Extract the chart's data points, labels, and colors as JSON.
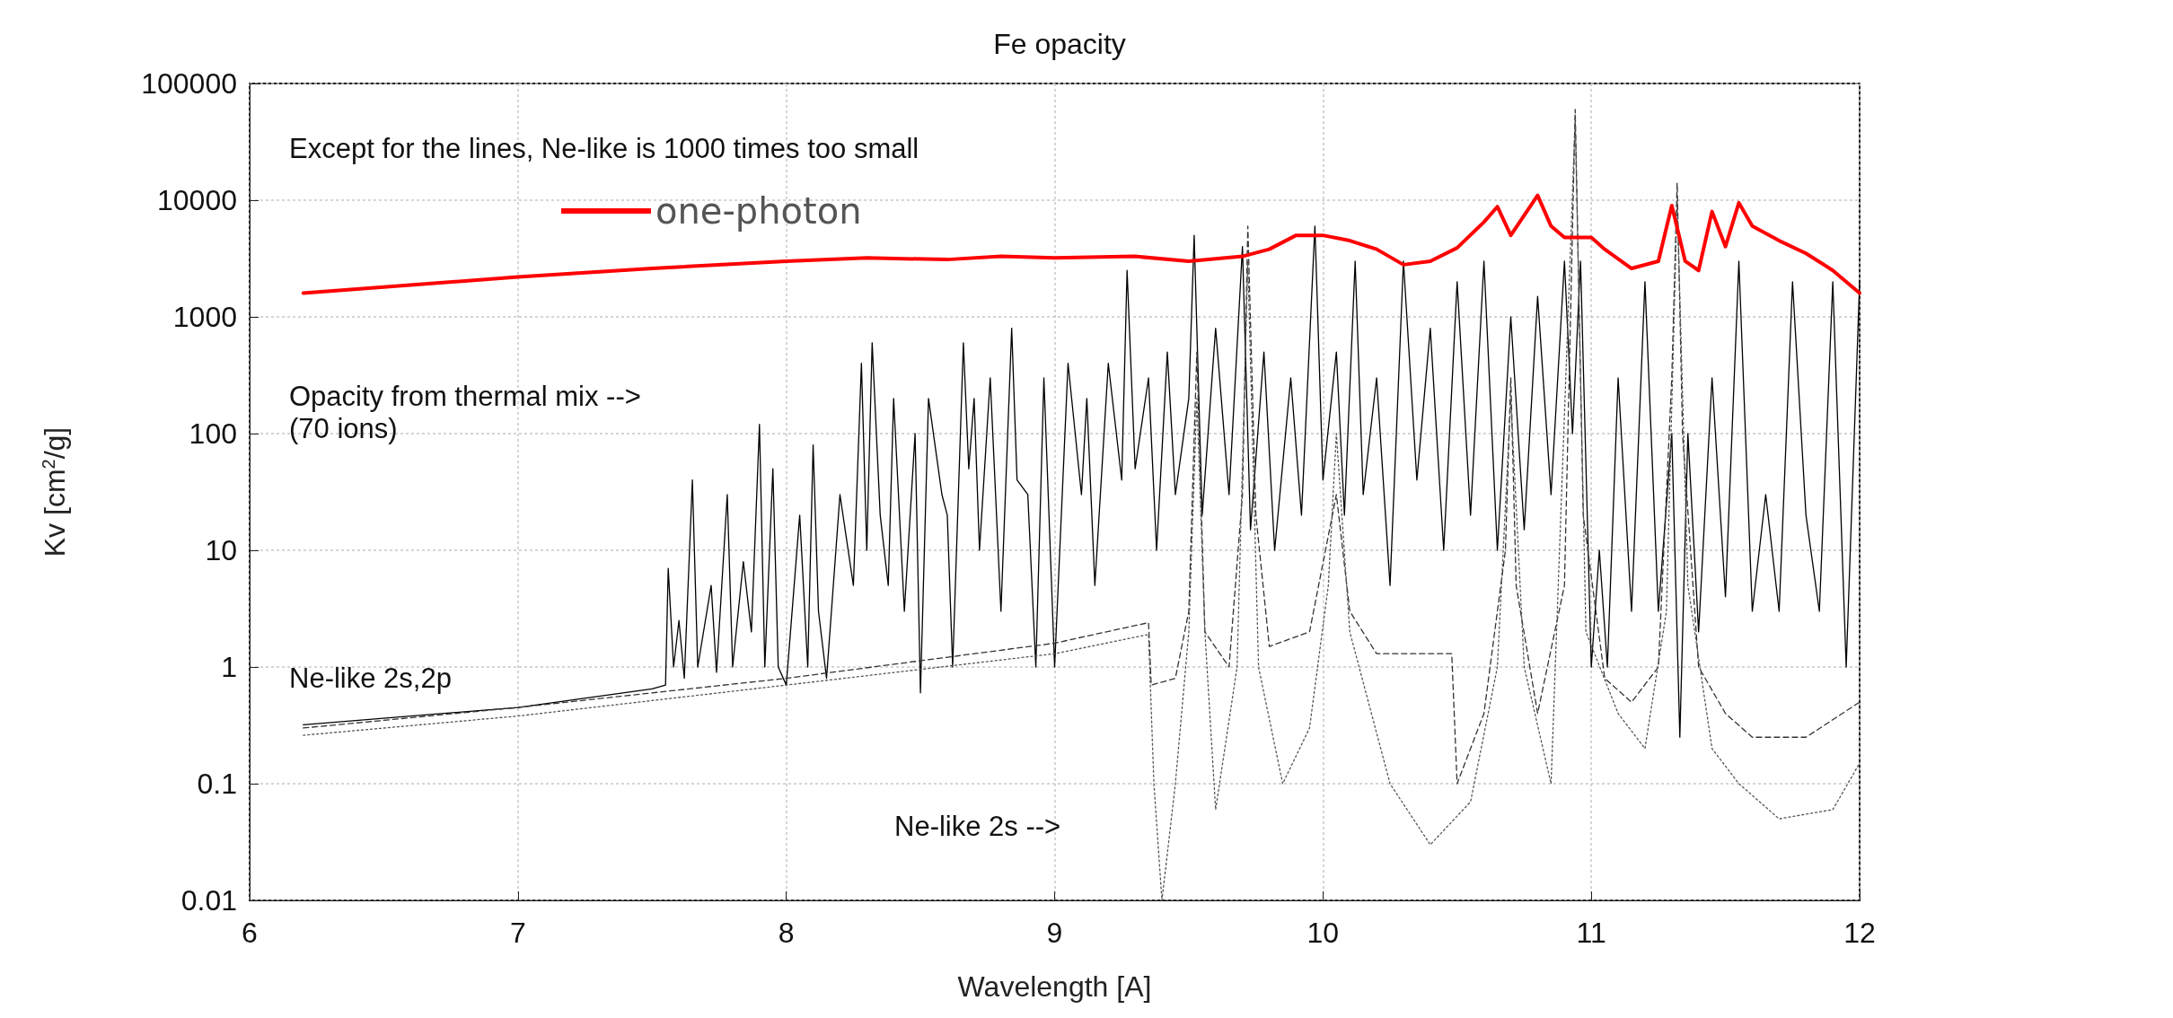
{
  "chart_data": {
    "type": "line",
    "title": "Fe opacity",
    "xlabel": "Wavelength [A]",
    "ylabel": "Kv [cm$^{2}$/g]",
    "xlim": [
      6,
      12
    ],
    "xticks": [
      6,
      7,
      8,
      9,
      10,
      11,
      12
    ],
    "ylim": [
      0.01,
      100000
    ],
    "yticks": [
      0.01,
      0.1,
      1,
      10,
      100,
      1000,
      10000,
      100000
    ],
    "log": "y",
    "grid": true,
    "legend": "top left",
    "marker": "none",
    "annotations": [
      "Except for the lines, Ne-like is 1000 times too small",
      "Opacity from thermal mix -->",
      "(70 ions)",
      "Ne-like 2s,2p",
      "Ne-like 2s -->"
    ],
    "series": [
      {
        "name": "one-photon",
        "color": "#ff0000",
        "line_style": "solid",
        "x": [
          6.2,
          6.5,
          7.0,
          7.5,
          8.0,
          8.3,
          8.6,
          8.8,
          9.0,
          9.3,
          9.5,
          9.7,
          9.8,
          9.9,
          10.0,
          10.1,
          10.2,
          10.3,
          10.4,
          10.5,
          10.6,
          10.65,
          10.7,
          10.8,
          10.85,
          10.9,
          11.0,
          11.05,
          11.15,
          11.25,
          11.3,
          11.35,
          11.4,
          11.45,
          11.5,
          11.55,
          11.6,
          11.7,
          11.8,
          11.9,
          12.0
        ],
        "values": [
          1600,
          1800,
          2200,
          2600,
          3000,
          3200,
          3100,
          3300,
          3200,
          3300,
          3000,
          3300,
          3800,
          5000,
          5000,
          4500,
          3800,
          2800,
          3000,
          3900,
          6500,
          8800,
          5000,
          11000,
          6000,
          4800,
          4800,
          3800,
          2600,
          3000,
          9000,
          3000,
          2500,
          8000,
          4000,
          9500,
          6000,
          4500,
          3500,
          2500,
          1600
        ]
      },
      {
        "color": "#000000",
        "line_style": "solid",
        "x": [
          6.2,
          7,
          7.5,
          7.55,
          7.56,
          7.58,
          7.6,
          7.62,
          7.65,
          7.67,
          7.72,
          7.74,
          7.78,
          7.8,
          7.84,
          7.87,
          7.9,
          7.92,
          7.95,
          7.97,
          8.0,
          8.05,
          8.08,
          8.1,
          8.12,
          8.15,
          8.2,
          8.25,
          8.28,
          8.3,
          8.32,
          8.35,
          8.38,
          8.4,
          8.44,
          8.48,
          8.5,
          8.53,
          8.58,
          8.6,
          8.62,
          8.66,
          8.68,
          8.7,
          8.72,
          8.76,
          8.8,
          8.84,
          8.86,
          8.9,
          8.93,
          8.96,
          9.0,
          9.05,
          9.1,
          9.12,
          9.15,
          9.2,
          9.25,
          9.27,
          9.3,
          9.35,
          9.38,
          9.42,
          9.45,
          9.5,
          9.52,
          9.55,
          9.6,
          9.65,
          9.7,
          9.73,
          9.78,
          9.82,
          9.88,
          9.92,
          9.97,
          10.0,
          10.05,
          10.08,
          10.12,
          10.15,
          10.2,
          10.25,
          10.3,
          10.35,
          10.4,
          10.45,
          10.5,
          10.55,
          10.6,
          10.65,
          10.7,
          10.75,
          10.8,
          10.85,
          10.9,
          10.93,
          10.96,
          11.0,
          11.03,
          11.06,
          11.1,
          11.15,
          11.2,
          11.25,
          11.3,
          11.33,
          11.36,
          11.4,
          11.45,
          11.5,
          11.55,
          11.6,
          11.65,
          11.7,
          11.75,
          11.8,
          11.85,
          11.9,
          11.95,
          12.0
        ],
        "values": [
          0.32,
          0.45,
          0.65,
          0.7,
          7,
          1,
          2.5,
          0.8,
          40,
          1,
          5,
          0.9,
          30,
          1,
          8,
          2,
          120,
          1,
          50,
          1,
          0.7,
          20,
          1,
          80,
          3,
          0.8,
          30,
          5,
          400,
          10,
          600,
          20,
          5,
          200,
          3,
          100,
          0.6,
          200,
          30,
          20,
          1,
          600,
          50,
          200,
          10,
          300,
          3,
          800,
          40,
          30,
          1,
          300,
          1,
          400,
          30,
          200,
          5,
          400,
          40,
          2500,
          50,
          300,
          10,
          500,
          30,
          200,
          5000,
          20,
          800,
          30,
          4000,
          15,
          500,
          10,
          300,
          20,
          6000,
          40,
          500,
          20,
          3000,
          30,
          300,
          5,
          3000,
          40,
          800,
          10,
          2000,
          20,
          3000,
          10,
          1000,
          15,
          1500,
          30,
          3000,
          100,
          3000,
          1,
          10,
          1,
          300,
          3,
          2000,
          3,
          100,
          0.25,
          100,
          2,
          300,
          4,
          3000,
          3,
          30,
          3,
          2000,
          20,
          3,
          2000,
          1,
          2000
        ]
      },
      {
        "color": "#333333",
        "line_style": "dashed",
        "x": [
          6.2,
          7,
          8,
          9,
          9.35,
          9.36,
          9.45,
          9.5,
          9.53,
          9.56,
          9.65,
          9.7,
          9.72,
          9.75,
          9.8,
          9.95,
          10.05,
          10.1,
          10.2,
          10.48,
          10.5,
          10.6,
          10.68,
          10.7,
          10.72,
          10.8,
          10.9,
          10.94,
          10.97,
          11.05,
          11.15,
          11.25,
          11.3,
          11.32,
          11.34,
          11.4,
          11.5,
          11.6,
          11.8,
          12.0
        ],
        "values": [
          0.3,
          0.45,
          0.8,
          1.6,
          2.4,
          0.7,
          0.8,
          3,
          500,
          2,
          1,
          30,
          6000,
          20,
          1.5,
          2,
          30,
          3,
          1.3,
          1.3,
          0.1,
          0.4,
          10,
          300,
          5,
          0.4,
          5,
          60000,
          20,
          0.8,
          0.5,
          1,
          300,
          14000,
          100,
          1,
          0.4,
          0.25,
          0.25,
          0.5
        ]
      },
      {
        "color": "#555555",
        "line_style": "dotted",
        "x": [
          6.2,
          7,
          8,
          9,
          9.35,
          9.37,
          9.4,
          9.45,
          9.5,
          9.53,
          9.56,
          9.6,
          9.68,
          9.72,
          9.76,
          9.85,
          9.95,
          10.02,
          10.05,
          10.1,
          10.25,
          10.4,
          10.55,
          10.65,
          10.7,
          10.75,
          10.85,
          10.94,
          10.98,
          11.1,
          11.2,
          11.28,
          11.32,
          11.36,
          11.45,
          11.55,
          11.7,
          11.9,
          12.0
        ],
        "values": [
          0.26,
          0.38,
          0.7,
          1.3,
          1.9,
          0.1,
          0.01,
          0.1,
          2,
          200,
          2,
          0.06,
          1,
          3000,
          1,
          0.1,
          0.3,
          5,
          100,
          2,
          0.1,
          0.03,
          0.07,
          1,
          200,
          1,
          0.1,
          50000,
          2,
          0.4,
          0.2,
          3,
          10000,
          5,
          0.2,
          0.1,
          0.05,
          0.06,
          0.15
        ]
      }
    ]
  }
}
